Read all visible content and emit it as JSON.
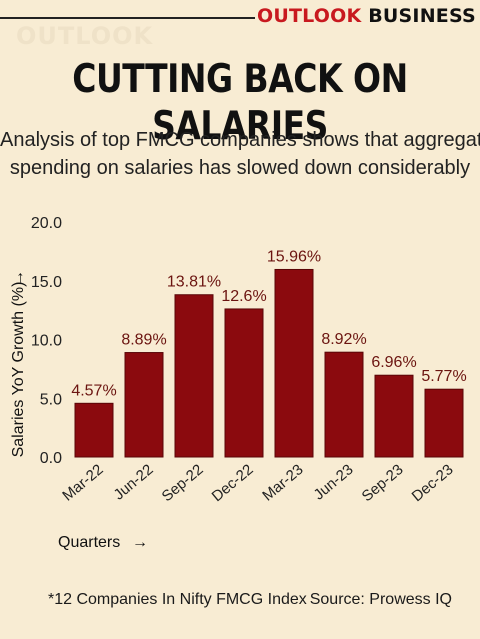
{
  "header": {
    "brand_part1": "OUTLOOK",
    "brand_part2": "BUSINESS",
    "watermark": "OUTLOOK"
  },
  "title": "CUTTING BACK ON SALARIES",
  "subtitle_line1": "Analysis of top FMCG companies shows that aggregate",
  "subtitle_line2": "spending on salaries has slowed down considerably",
  "footnote": "*12 Companies In Nifty FMCG Index",
  "source": "Source: Prowess IQ",
  "colors": {
    "bar": "#8b0a0e",
    "label": "#6b1410",
    "brand_red": "#c8191f",
    "background": "#f8ecd3"
  },
  "chart_data": {
    "type": "bar",
    "categories": [
      "Mar-22",
      "Jun-22",
      "Sep-22",
      "Dec-22",
      "Mar-23",
      "Jun-23",
      "Sep-23",
      "Dec-23"
    ],
    "values": [
      4.57,
      8.89,
      13.81,
      12.6,
      15.96,
      8.92,
      6.96,
      5.77
    ],
    "value_labels": [
      "4.57%",
      "8.89%",
      "13.81%",
      "12.6%",
      "15.96%",
      "8.92%",
      "6.96%",
      "5.77%"
    ],
    "ylabel": "Salaries YoY Growth (%)",
    "ylabel_arrow": "→",
    "xlabel": "Quarters",
    "xlabel_arrow": "→",
    "ylim": [
      0,
      20
    ],
    "yticks": [
      "0.0",
      "5.0",
      "10.0",
      "15.0",
      "20.0"
    ],
    "grid": false
  }
}
